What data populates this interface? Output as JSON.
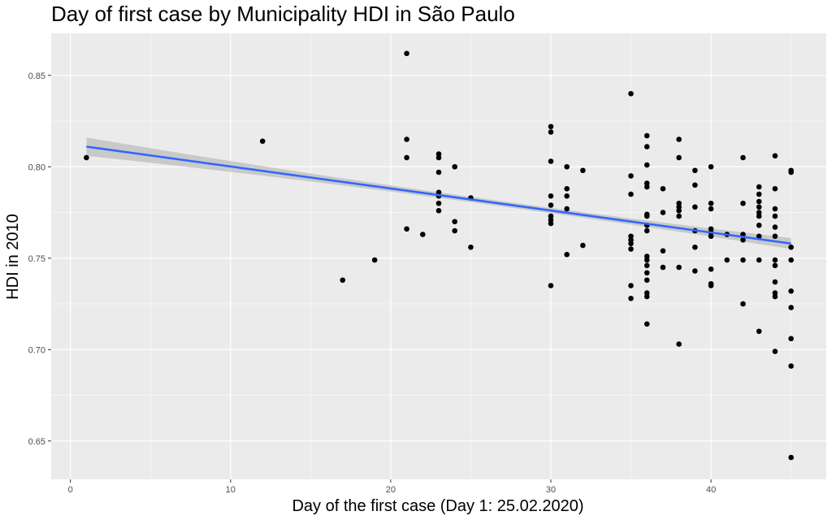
{
  "chart_data": {
    "type": "scatter",
    "title": "Day of first case by Municipality HDI in São Paulo",
    "xlabel": "Day of the first case (Day 1: 25.02.2020)",
    "ylabel": "HDI in 2010",
    "xlim": [
      -1.2,
      47.2
    ],
    "ylim": [
      0.629,
      0.873
    ],
    "x_ticks": [
      0,
      10,
      20,
      30,
      40
    ],
    "y_ticks": [
      0.65,
      0.7,
      0.75,
      0.8,
      0.85
    ],
    "x_tick_labels": [
      "0",
      "10",
      "20",
      "30",
      "40"
    ],
    "y_tick_labels": [
      "0.65",
      "0.70",
      "0.75",
      "0.80",
      "0.85"
    ],
    "grid": true,
    "background": "#ebebeb",
    "grid_color": "#ffffff",
    "point_color": "#000000",
    "trend_color": "#3366ff",
    "ribbon_color": "#bebebe",
    "trendline": {
      "method": "linear regression",
      "start": [
        1,
        0.811
      ],
      "end": [
        45,
        0.758
      ],
      "ci_halfwidth_start": 0.005,
      "ci_halfwidth_mid": 0.0015,
      "ci_halfwidth_end": 0.003
    },
    "points": [
      [
        1,
        0.805
      ],
      [
        12,
        0.814
      ],
      [
        17,
        0.738
      ],
      [
        19,
        0.749
      ],
      [
        21,
        0.862
      ],
      [
        21,
        0.815
      ],
      [
        21,
        0.805
      ],
      [
        21,
        0.766
      ],
      [
        22,
        0.763
      ],
      [
        23,
        0.807
      ],
      [
        23,
        0.805
      ],
      [
        23,
        0.797
      ],
      [
        23,
        0.786
      ],
      [
        23,
        0.784
      ],
      [
        23,
        0.78
      ],
      [
        23,
        0.776
      ],
      [
        24,
        0.8
      ],
      [
        24,
        0.77
      ],
      [
        24,
        0.765
      ],
      [
        25,
        0.783
      ],
      [
        25,
        0.756
      ],
      [
        30,
        0.822
      ],
      [
        30,
        0.819
      ],
      [
        30,
        0.803
      ],
      [
        30,
        0.784
      ],
      [
        30,
        0.779
      ],
      [
        30,
        0.773
      ],
      [
        30,
        0.771
      ],
      [
        30,
        0.769
      ],
      [
        30,
        0.735
      ],
      [
        31,
        0.8
      ],
      [
        31,
        0.788
      ],
      [
        31,
        0.784
      ],
      [
        31,
        0.777
      ],
      [
        31,
        0.752
      ],
      [
        32,
        0.798
      ],
      [
        32,
        0.757
      ],
      [
        35,
        0.84
      ],
      [
        35,
        0.795
      ],
      [
        35,
        0.785
      ],
      [
        35,
        0.762
      ],
      [
        35,
        0.76
      ],
      [
        35,
        0.758
      ],
      [
        35,
        0.755
      ],
      [
        35,
        0.735
      ],
      [
        35,
        0.728
      ],
      [
        36,
        0.817
      ],
      [
        36,
        0.811
      ],
      [
        36,
        0.801
      ],
      [
        36,
        0.791
      ],
      [
        36,
        0.789
      ],
      [
        36,
        0.774
      ],
      [
        36,
        0.773
      ],
      [
        36,
        0.768
      ],
      [
        36,
        0.765
      ],
      [
        36,
        0.751
      ],
      [
        36,
        0.749
      ],
      [
        36,
        0.746
      ],
      [
        36,
        0.742
      ],
      [
        36,
        0.738
      ],
      [
        36,
        0.731
      ],
      [
        36,
        0.729
      ],
      [
        36,
        0.714
      ],
      [
        37,
        0.788
      ],
      [
        37,
        0.775
      ],
      [
        37,
        0.754
      ],
      [
        37,
        0.745
      ],
      [
        38,
        0.815
      ],
      [
        38,
        0.805
      ],
      [
        38,
        0.78
      ],
      [
        38,
        0.778
      ],
      [
        38,
        0.776
      ],
      [
        38,
        0.773
      ],
      [
        38,
        0.745
      ],
      [
        38,
        0.703
      ],
      [
        39,
        0.798
      ],
      [
        39,
        0.79
      ],
      [
        39,
        0.778
      ],
      [
        39,
        0.765
      ],
      [
        39,
        0.756
      ],
      [
        39,
        0.743
      ],
      [
        40,
        0.8
      ],
      [
        40,
        0.78
      ],
      [
        40,
        0.777
      ],
      [
        40,
        0.766
      ],
      [
        40,
        0.764
      ],
      [
        40,
        0.762
      ],
      [
        40,
        0.744
      ],
      [
        40,
        0.736
      ],
      [
        40,
        0.735
      ],
      [
        41,
        0.763
      ],
      [
        41,
        0.749
      ],
      [
        42,
        0.805
      ],
      [
        42,
        0.78
      ],
      [
        42,
        0.763
      ],
      [
        42,
        0.76
      ],
      [
        42,
        0.749
      ],
      [
        42,
        0.725
      ],
      [
        43,
        0.789
      ],
      [
        43,
        0.785
      ],
      [
        43,
        0.781
      ],
      [
        43,
        0.778
      ],
      [
        43,
        0.775
      ],
      [
        43,
        0.773
      ],
      [
        43,
        0.768
      ],
      [
        43,
        0.762
      ],
      [
        43,
        0.749
      ],
      [
        43,
        0.71
      ],
      [
        44,
        0.806
      ],
      [
        44,
        0.788
      ],
      [
        44,
        0.777
      ],
      [
        44,
        0.773
      ],
      [
        44,
        0.767
      ],
      [
        44,
        0.762
      ],
      [
        44,
        0.749
      ],
      [
        44,
        0.746
      ],
      [
        44,
        0.737
      ],
      [
        44,
        0.731
      ],
      [
        44,
        0.729
      ],
      [
        44,
        0.699
      ],
      [
        45,
        0.798
      ],
      [
        45,
        0.797
      ],
      [
        45,
        0.756
      ],
      [
        45,
        0.749
      ],
      [
        45,
        0.732
      ],
      [
        45,
        0.723
      ],
      [
        45,
        0.706
      ],
      [
        45,
        0.691
      ],
      [
        45,
        0.641
      ]
    ]
  }
}
